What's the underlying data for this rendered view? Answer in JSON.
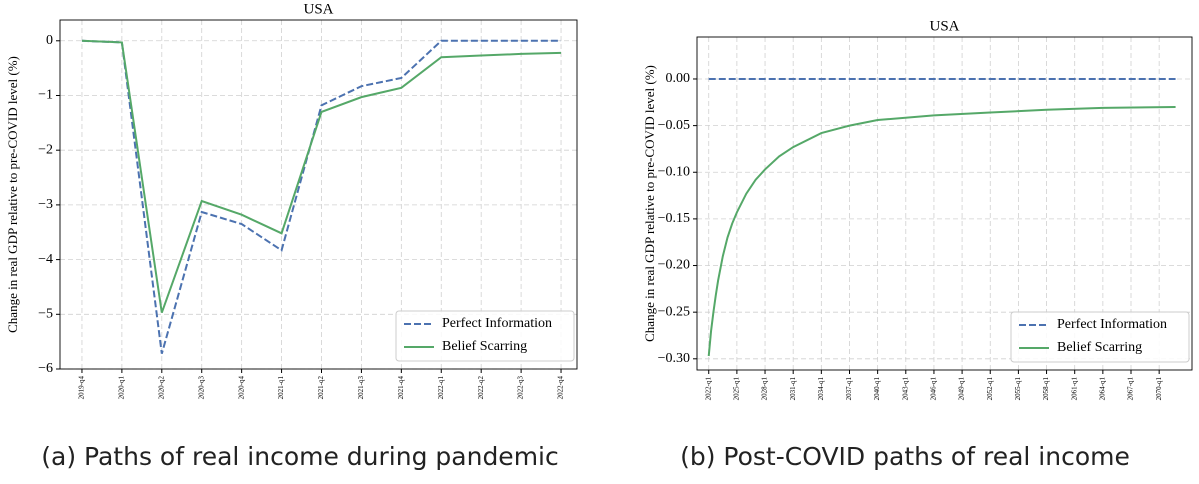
{
  "chart_data": [
    {
      "type": "line",
      "title": "USA",
      "ylabel": "Change in real GDP relative to pre-COVID level (%)",
      "caption": "(a) Paths of real income during pandemic",
      "categories": [
        "2019-q4",
        "2020-q1",
        "2020-q2",
        "2020-q3",
        "2020-q4",
        "2021-q1",
        "2021-q2",
        "2021-q3",
        "2021-q4",
        "2022-q1",
        "2022-q2",
        "2022-q3",
        "2022-q4"
      ],
      "series": [
        {
          "name": "Perfect Information",
          "color": "#4c72b0",
          "linestyle": "dashed",
          "values": [
            0,
            -0.03,
            -5.72,
            -3.13,
            -3.35,
            -3.83,
            -1.18,
            -0.83,
            -0.68,
            0,
            0,
            0,
            0
          ]
        },
        {
          "name": "Belief Scarring",
          "color": "#55a868",
          "linestyle": "solid",
          "values": [
            0,
            -0.03,
            -4.97,
            -2.93,
            -3.18,
            -3.52,
            -1.3,
            -1.03,
            -0.86,
            -0.3,
            -0.27,
            -0.24,
            -0.22
          ]
        }
      ],
      "ylim": [
        -6,
        0.38
      ],
      "yticks": [
        0,
        {
          "value": -1,
          "label": "−1"
        },
        {
          "value": -2,
          "label": "−2"
        },
        {
          "value": -3,
          "label": "−3"
        },
        {
          "value": -4,
          "label": "−4"
        },
        {
          "value": -5,
          "label": "−5"
        },
        {
          "value": -6,
          "label": "−6"
        }
      ],
      "grid": true,
      "legend": "lower right"
    },
    {
      "type": "line",
      "title": "USA",
      "ylabel": "Change in real GDP relative to pre-COVID level (%)",
      "caption": "(b) Post-COVID paths of real income",
      "x": [
        0,
        1,
        2,
        3,
        4,
        6,
        8,
        10,
        12,
        16,
        20,
        24,
        30,
        36,
        48,
        60,
        72,
        96,
        120,
        144,
        168,
        199
      ],
      "series": [
        {
          "name": "Perfect Information",
          "color": "#4c72b0",
          "linestyle": "dashed",
          "values": [
            0,
            0,
            0,
            0,
            0,
            0,
            0,
            0,
            0,
            0,
            0,
            0,
            0,
            0,
            0,
            0,
            0,
            0,
            0,
            0,
            0,
            0
          ]
        },
        {
          "name": "Belief Scarring",
          "color": "#55a868",
          "linestyle": "solid",
          "values": [
            -0.297,
            -0.27,
            -0.25,
            -0.232,
            -0.216,
            -0.19,
            -0.17,
            -0.155,
            -0.143,
            -0.123,
            -0.108,
            -0.097,
            -0.083,
            -0.073,
            -0.058,
            -0.05,
            -0.044,
            -0.039,
            -0.036,
            -0.033,
            -0.031,
            -0.03
          ]
        }
      ],
      "xlim": [
        -5,
        206
      ],
      "xticks": [
        {
          "value": 0,
          "label": "2022-q1"
        },
        {
          "value": 12,
          "label": "2025-q1"
        },
        {
          "value": 24,
          "label": "2028-q1"
        },
        {
          "value": 36,
          "label": "2031-q1"
        },
        {
          "value": 48,
          "label": "2034-q1"
        },
        {
          "value": 60,
          "label": "2037-q1"
        },
        {
          "value": 72,
          "label": "2040-q1"
        },
        {
          "value": 84,
          "label": "2043-q1"
        },
        {
          "value": 96,
          "label": "2046-q1"
        },
        {
          "value": 108,
          "label": "2049-q1"
        },
        {
          "value": 120,
          "label": "2052-q1"
        },
        {
          "value": 132,
          "label": "2055-q1"
        },
        {
          "value": 144,
          "label": "2058-q1"
        },
        {
          "value": 156,
          "label": "2061-q1"
        },
        {
          "value": 168,
          "label": "2064-q1"
        },
        {
          "value": 180,
          "label": "2067-q1"
        },
        {
          "value": 192,
          "label": "2070-q1"
        }
      ],
      "ylim": [
        -0.312,
        0.045
      ],
      "yticks": [
        {
          "value": 0,
          "label": "0.00"
        },
        {
          "value": -0.05,
          "label": "−0.05"
        },
        {
          "value": -0.1,
          "label": "−0.10"
        },
        {
          "value": -0.15,
          "label": "−0.15"
        },
        {
          "value": -0.2,
          "label": "−0.20"
        },
        {
          "value": -0.25,
          "label": "−0.25"
        },
        {
          "value": -0.3,
          "label": "−0.30"
        }
      ],
      "grid": true,
      "legend": "lower right"
    }
  ]
}
